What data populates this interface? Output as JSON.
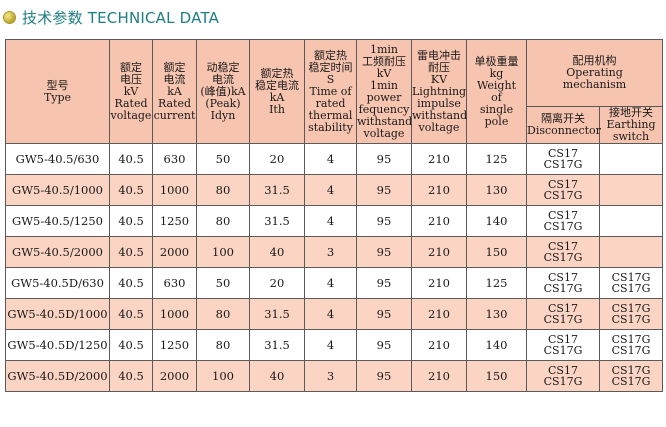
{
  "title": "技术参数 TECHNICAL DATA",
  "headers": {
    "model": [
      "型号",
      "Type"
    ],
    "voltage": [
      "额定",
      "电压",
      "kV",
      "Rated",
      "voltage"
    ],
    "current": [
      "额定",
      "电流",
      "kA",
      "Rated",
      "current"
    ],
    "dynamic": [
      "动稳定",
      "电流",
      "(峰值)kA",
      "(Peak)",
      "Idyn"
    ],
    "thermal": [
      "额定热",
      "稳定电流",
      "kA",
      "Ith"
    ],
    "thermal_time": [
      "额定热",
      "稳定时间",
      "S",
      "Time of",
      "rated",
      "thermal",
      "stability"
    ],
    "power_freq": [
      "1min",
      "工频耐压",
      "kV",
      "1min",
      "power",
      "fequency",
      "withstand",
      "voltage"
    ],
    "lightning": [
      "雷电冲击",
      "耐压",
      "KV",
      "Lightning",
      "impulse",
      "withstand",
      "voltage"
    ],
    "weight": [
      "单极重量",
      "kg",
      "Weight",
      "of",
      "single",
      "pole"
    ],
    "mechanism": [
      "配用机构",
      "Operating",
      "mechanism"
    ],
    "disconnector": [
      "隔离开关",
      "Disconnector"
    ],
    "earthing": [
      "接地开关",
      "Earthing",
      "switch"
    ]
  },
  "rows": [
    {
      "type": "GW5-40.5/630",
      "voltage": "40.5",
      "current": "630",
      "dynamic": "50",
      "thermal": "20",
      "time": "4",
      "pf": "95",
      "li": "210",
      "weight": "125",
      "disc": [
        "CS17",
        "CS17G"
      ],
      "earth": [
        "",
        ""
      ]
    },
    {
      "type": "GW5-40.5/1000",
      "voltage": "40.5",
      "current": "1000",
      "dynamic": "80",
      "thermal": "31.5",
      "time": "4",
      "pf": "95",
      "li": "210",
      "weight": "130",
      "disc": [
        "CS17",
        "CS17G"
      ],
      "earth": [
        "",
        ""
      ]
    },
    {
      "type": "GW5-40.5/1250",
      "voltage": "40.5",
      "current": "1250",
      "dynamic": "80",
      "thermal": "31.5",
      "time": "4",
      "pf": "95",
      "li": "210",
      "weight": "140",
      "disc": [
        "CS17",
        "CS17G"
      ],
      "earth": [
        "",
        ""
      ]
    },
    {
      "type": "GW5-40.5/2000",
      "voltage": "40.5",
      "current": "2000",
      "dynamic": "100",
      "thermal": "40",
      "time": "3",
      "pf": "95",
      "li": "210",
      "weight": "150",
      "disc": [
        "CS17",
        "CS17G"
      ],
      "earth": [
        "",
        ""
      ]
    },
    {
      "type": "GW5-40.5D/630",
      "voltage": "40.5",
      "current": "630",
      "dynamic": "50",
      "thermal": "20",
      "time": "4",
      "pf": "95",
      "li": "210",
      "weight": "125",
      "disc": [
        "CS17",
        "CS17G"
      ],
      "earth": [
        "CS17G",
        "CS17G"
      ]
    },
    {
      "type": "GW5-40.5D/1000",
      "voltage": "40.5",
      "current": "1000",
      "dynamic": "80",
      "thermal": "31.5",
      "time": "4",
      "pf": "95",
      "li": "210",
      "weight": "130",
      "disc": [
        "CS17",
        "CS17G"
      ],
      "earth": [
        "CS17G",
        "CS17G"
      ]
    },
    {
      "type": "GW5-40.5D/1250",
      "voltage": "40.5",
      "current": "1250",
      "dynamic": "80",
      "thermal": "31.5",
      "time": "4",
      "pf": "95",
      "li": "210",
      "weight": "140",
      "disc": [
        "CS17",
        "CS17G"
      ],
      "earth": [
        "CS17G",
        "CS17G"
      ]
    },
    {
      "type": "GW5-40.5D/2000",
      "voltage": "40.5",
      "current": "2000",
      "dynamic": "100",
      "thermal": "40",
      "time": "3",
      "pf": "95",
      "li": "210",
      "weight": "150",
      "disc": [
        "CS17",
        "CS17G"
      ],
      "earth": [
        "CS17G",
        "CS17G"
      ]
    }
  ]
}
